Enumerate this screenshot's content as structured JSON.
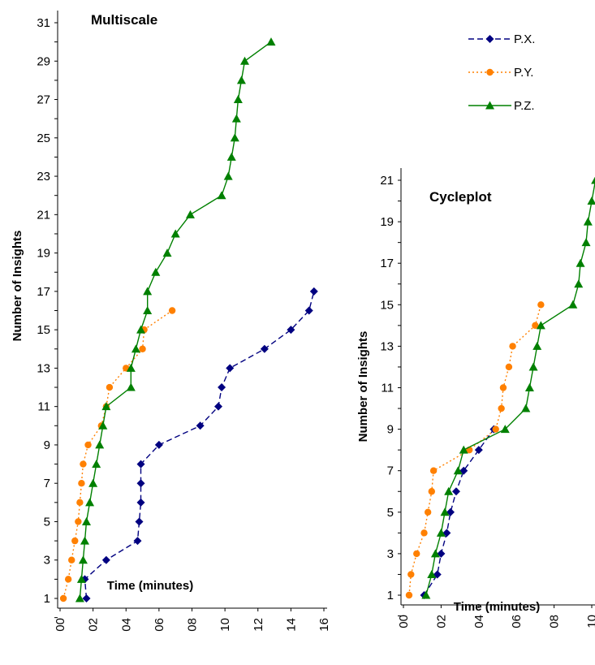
{
  "legend": {
    "placement": "top-right of left chart",
    "items": [
      {
        "name": "P.X.",
        "color": "#000080",
        "dash": "dashed",
        "marker": "diamond"
      },
      {
        "name": "P.Y.",
        "color": "#FF8000",
        "dash": "dotted",
        "marker": "circle"
      },
      {
        "name": "P.Z.",
        "color": "#008000",
        "dash": "solid",
        "marker": "triangle"
      }
    ]
  },
  "chart_data": [
    {
      "type": "line",
      "title": "Multiscale",
      "xlabel": "Time (minutes)",
      "ylabel": "Number of Insights",
      "xlim": [
        0,
        16
      ],
      "ylim": [
        0.5,
        32
      ],
      "xticks": [
        0,
        2,
        4,
        6,
        8,
        10,
        12,
        14,
        16
      ],
      "xtick_labels": [
        "00",
        "02",
        "04",
        "06",
        "08",
        "10",
        "12",
        "14",
        "16"
      ],
      "yticks": [
        1,
        3,
        5,
        7,
        9,
        11,
        13,
        15,
        17,
        19,
        21,
        23,
        25,
        27,
        29,
        31
      ],
      "grid": false,
      "series": [
        {
          "name": "P.X.",
          "x": [
            1.6,
            1.5,
            2.8,
            4.7,
            4.8,
            4.9,
            4.9,
            4.9,
            6.0,
            8.5,
            9.6,
            9.8,
            10.3,
            12.4,
            14.0,
            15.1,
            15.4
          ],
          "y": [
            1,
            2,
            3,
            4,
            5,
            6,
            7,
            8,
            9,
            10,
            11,
            12,
            13,
            14,
            15,
            16,
            17
          ]
        },
        {
          "name": "P.Y.",
          "x": [
            0.2,
            0.5,
            0.7,
            0.9,
            1.1,
            1.2,
            1.3,
            1.4,
            1.7,
            2.5,
            2.8,
            3.0,
            4.0,
            5.0,
            5.1,
            6.8
          ],
          "y": [
            1,
            2,
            3,
            4,
            5,
            6,
            7,
            8,
            9,
            10,
            11,
            12,
            13,
            14,
            15,
            16
          ]
        },
        {
          "name": "P.Z.",
          "x": [
            1.2,
            1.3,
            1.4,
            1.5,
            1.6,
            1.8,
            2.0,
            2.2,
            2.4,
            2.6,
            2.8,
            4.3,
            4.3,
            4.6,
            4.9,
            5.3,
            5.3,
            5.8,
            6.5,
            7.0,
            7.9,
            9.8,
            10.2,
            10.4,
            10.6,
            10.7,
            10.8,
            11.0,
            11.2,
            12.8
          ],
          "y": [
            1,
            2,
            3,
            4,
            5,
            6,
            7,
            8,
            9,
            10,
            11,
            12,
            13,
            14,
            15,
            16,
            17,
            18,
            19,
            20,
            21,
            22,
            23,
            24,
            25,
            26,
            27,
            28,
            29,
            30
          ]
        }
      ]
    },
    {
      "type": "line",
      "title": "Cycleplot",
      "xlabel": "Time (minutes)",
      "ylabel": "Number of Insights",
      "xlim": [
        0,
        10
      ],
      "ylim": [
        0.5,
        21.5
      ],
      "xticks": [
        0,
        2,
        4,
        6,
        8,
        10
      ],
      "xtick_labels": [
        "00",
        "02",
        "04",
        "06",
        "08",
        "10"
      ],
      "yticks": [
        1,
        3,
        5,
        7,
        9,
        11,
        13,
        15,
        17,
        19,
        21
      ],
      "grid": false,
      "series": [
        {
          "name": "P.X.",
          "x": [
            1.1,
            1.8,
            2.0,
            2.3,
            2.5,
            2.8,
            3.2,
            4.0,
            4.8
          ],
          "y": [
            1,
            2,
            3,
            4,
            5,
            6,
            7,
            8,
            9
          ]
        },
        {
          "name": "P.Y.",
          "x": [
            0.3,
            0.4,
            0.7,
            1.1,
            1.3,
            1.5,
            1.6,
            3.5,
            4.9,
            5.2,
            5.3,
            5.6,
            5.8,
            7.0,
            7.3
          ],
          "y": [
            1,
            2,
            3,
            4,
            5,
            6,
            7,
            8,
            9,
            10,
            11,
            12,
            13,
            14,
            15
          ]
        },
        {
          "name": "P.Z.",
          "x": [
            1.2,
            1.5,
            1.7,
            2.0,
            2.2,
            2.4,
            2.9,
            3.2,
            5.4,
            6.5,
            6.7,
            6.9,
            7.1,
            7.3,
            9.0,
            9.3,
            9.4,
            9.7,
            9.8,
            10.0,
            10.2
          ],
          "y": [
            1,
            2,
            3,
            4,
            5,
            6,
            7,
            8,
            9,
            10,
            11,
            12,
            13,
            14,
            15,
            16,
            17,
            18,
            19,
            20,
            21
          ]
        }
      ]
    }
  ]
}
